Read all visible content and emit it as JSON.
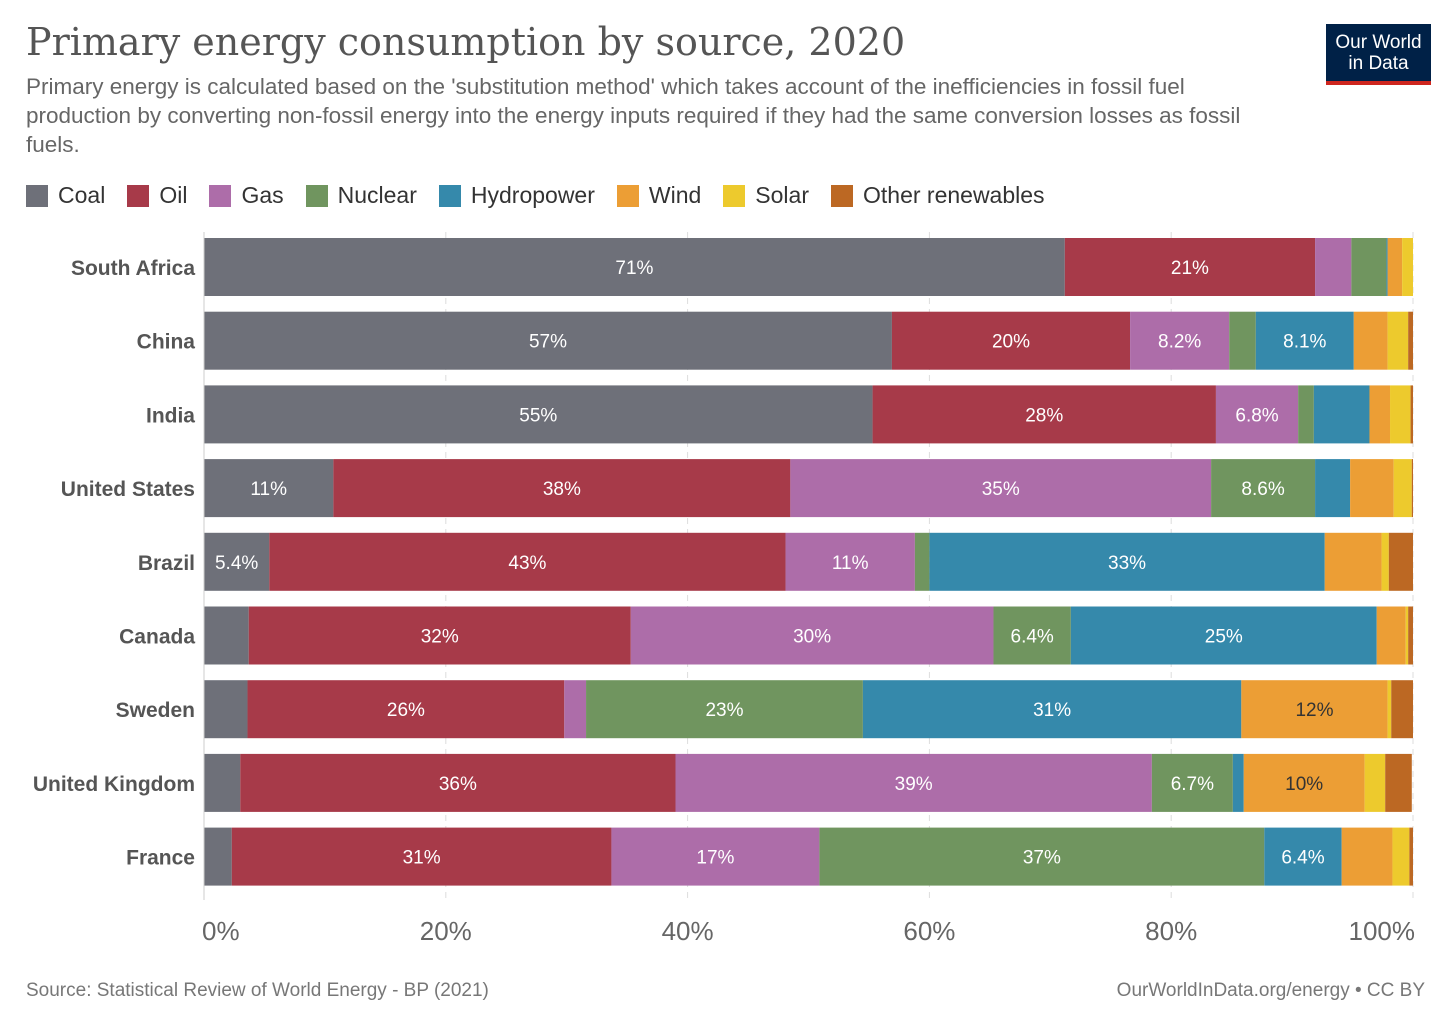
{
  "header": {
    "title": "Primary energy consumption by source, 2020",
    "subtitle": "Primary energy is calculated based on the 'substitution method' which takes account of the inefficiencies in fossil fuel production by converting non-fossil energy into the energy inputs required if they had the same conversion losses as fossil fuels.",
    "logo_line1": "Our World",
    "logo_line2": "in Data"
  },
  "footer": {
    "source": "Source: Statistical Review of World Energy - BP (2021)",
    "credit": "OurWorldInData.org/energy • CC BY"
  },
  "colors": {
    "logo_bg": "#002147",
    "logo_accent": "#ce261e"
  },
  "chart_data": {
    "type": "bar",
    "orientation": "horizontal",
    "stacked": true,
    "categories": [
      "South Africa",
      "China",
      "India",
      "United States",
      "Brazil",
      "Canada",
      "Sweden",
      "United Kingdom",
      "France"
    ],
    "xlim": [
      0,
      100
    ],
    "xticks": [
      "0%",
      "20%",
      "40%",
      "60%",
      "80%",
      "100%"
    ],
    "grid": true,
    "legend_position": "top",
    "series": [
      {
        "name": "Coal",
        "color": "#6e7079",
        "label_color": "#ffffff",
        "values": [
          71.2,
          56.9,
          55.3,
          10.7,
          5.4,
          3.7,
          3.6,
          3.0,
          2.3
        ],
        "labels": [
          "71%",
          "57%",
          "55%",
          "11%",
          "5.4%",
          "",
          "",
          "",
          ""
        ]
      },
      {
        "name": "Oil",
        "color": "#a73a49",
        "label_color": "#ffffff",
        "values": [
          20.7,
          19.7,
          28.4,
          37.8,
          42.7,
          31.6,
          26.2,
          36.0,
          31.4
        ],
        "labels": [
          "21%",
          "20%",
          "28%",
          "38%",
          "43%",
          "32%",
          "26%",
          "36%",
          "31%"
        ]
      },
      {
        "name": "Gas",
        "color": "#ad6da9",
        "label_color": "#ffffff",
        "values": [
          3.0,
          8.2,
          6.8,
          34.8,
          10.7,
          30.0,
          1.8,
          39.4,
          17.2
        ],
        "labels": [
          "",
          "8.2%",
          "6.8%",
          "35%",
          "11%",
          "30%",
          "",
          "39%",
          "17%"
        ]
      },
      {
        "name": "Nuclear",
        "color": "#70955f",
        "label_color": "#ffffff",
        "values": [
          2.9,
          2.2,
          1.3,
          8.6,
          1.2,
          6.4,
          22.9,
          6.7,
          36.8
        ],
        "labels": [
          "",
          "",
          "",
          "8.6%",
          "",
          "6.4%",
          "23%",
          "6.7%",
          "37%"
        ]
      },
      {
        "name": "Hydropower",
        "color": "#3589ab",
        "label_color": "#ffffff",
        "values": [
          0.1,
          8.1,
          4.6,
          2.9,
          32.7,
          25.3,
          31.3,
          0.9,
          6.4
        ],
        "labels": [
          "",
          "8.1%",
          "",
          "",
          "33%",
          "25%",
          "31%",
          "",
          "6.4%"
        ]
      },
      {
        "name": "Wind",
        "color": "#ec9e35",
        "label_color": "#333333",
        "values": [
          1.2,
          2.8,
          1.7,
          3.6,
          4.7,
          2.4,
          12.1,
          10.0,
          4.2
        ],
        "labels": [
          "",
          "",
          "",
          "",
          "",
          "",
          "12%",
          "10%",
          ""
        ]
      },
      {
        "name": "Solar",
        "color": "#edca2d",
        "label_color": "#333333",
        "values": [
          0.9,
          1.7,
          1.7,
          1.5,
          0.6,
          0.2,
          0.3,
          1.7,
          1.4
        ],
        "labels": [
          "",
          "",
          "",
          "",
          "",
          "",
          "",
          "",
          ""
        ]
      },
      {
        "name": "Other renewables",
        "color": "#bc6823",
        "label_color": "#ffffff",
        "values": [
          0.0,
          0.4,
          0.2,
          0.1,
          2.0,
          0.4,
          1.8,
          2.2,
          0.3
        ],
        "labels": [
          "",
          "",
          "",
          "",
          "",
          "",
          "",
          "",
          ""
        ]
      }
    ]
  }
}
